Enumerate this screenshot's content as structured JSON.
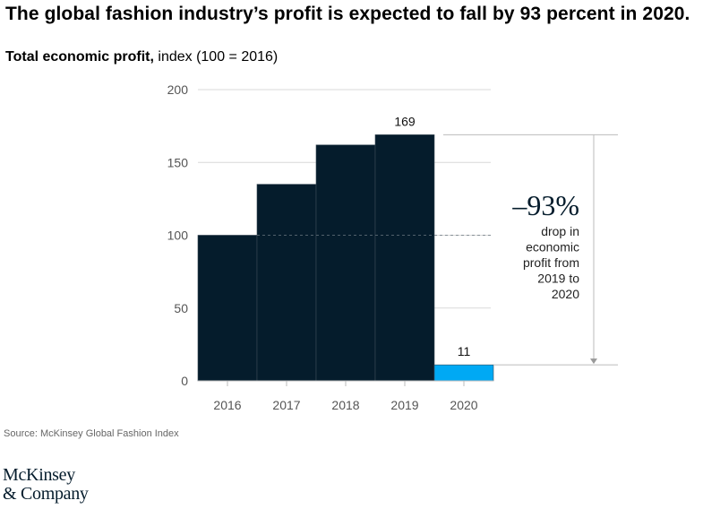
{
  "headline": "The global fashion industry’s profit is expected to fall by 93 percent in 2020.",
  "subtitle": {
    "bold": "Total economic profit,",
    "rest": " index (100 = 2016)"
  },
  "source": "Source: McKinsey Global Fashion Index",
  "logo": {
    "line1": "McKinsey",
    "line2": "& Company"
  },
  "colors": {
    "bar": "#051c2c",
    "highlight": "#00a9f4",
    "grid": "#d9d9d9"
  },
  "chart_data": {
    "type": "bar",
    "categories": [
      "2016",
      "2017",
      "2018",
      "2019",
      "2020"
    ],
    "values": [
      100,
      135,
      162,
      169,
      11
    ],
    "labels": [
      {
        "index": 3,
        "text": "169"
      },
      {
        "index": 4,
        "text": "11"
      }
    ],
    "highlight_index": 4,
    "yticks": [
      0,
      50,
      100,
      150,
      200
    ],
    "ylim": [
      0,
      200
    ],
    "annotation": {
      "value": "–93%",
      "lines": [
        "drop in",
        "economic",
        "profit from",
        "2019 to",
        "2020"
      ]
    }
  }
}
